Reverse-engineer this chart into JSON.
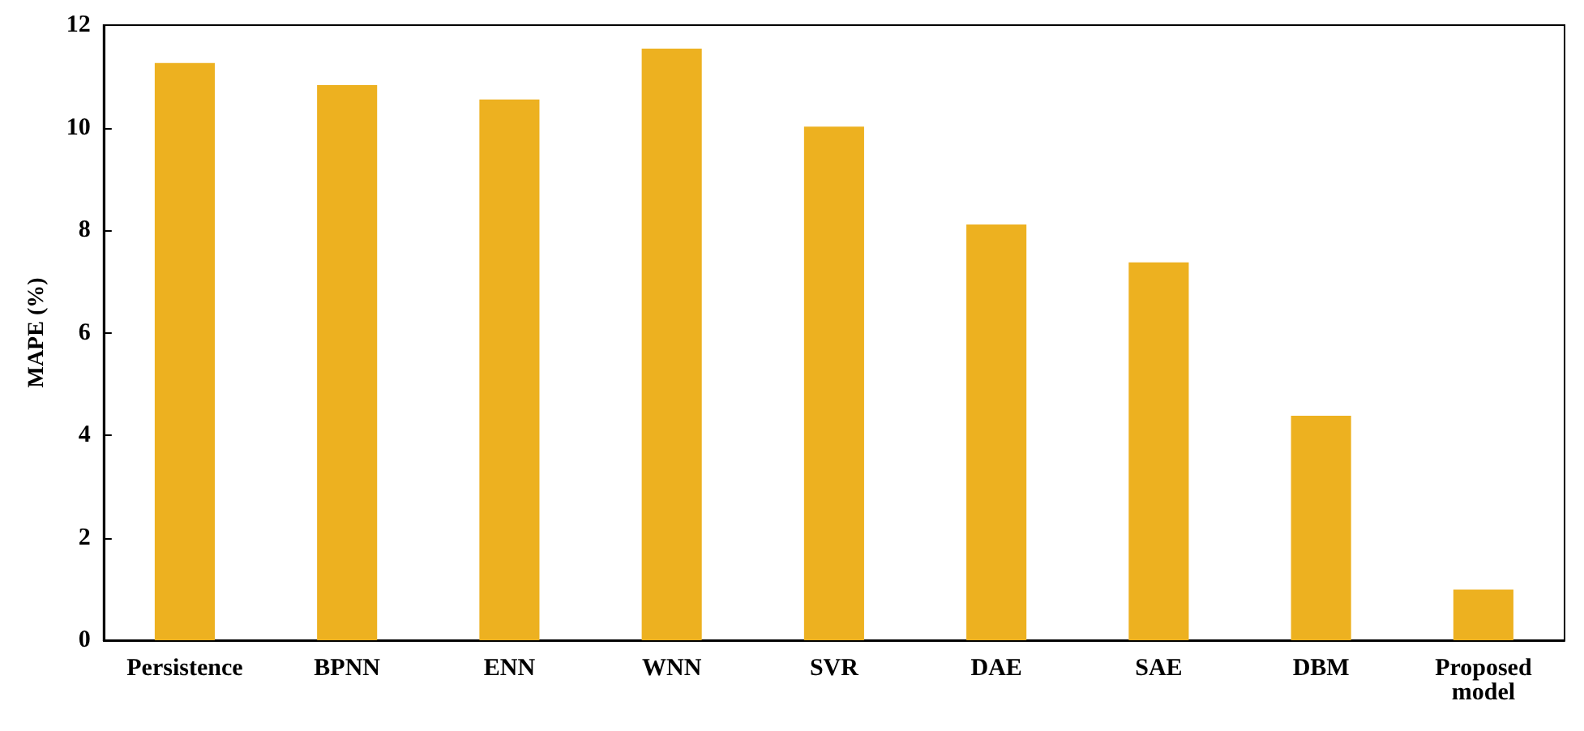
{
  "chart_data": {
    "type": "bar",
    "ylabel": "MAPE (%)",
    "categories": [
      "Persistence",
      "BPNN",
      "ENN",
      "WNN",
      "SVR",
      "DAE",
      "SAE",
      "DBM",
      "Proposed\nmodel"
    ],
    "values": [
      11.26,
      10.83,
      10.55,
      11.54,
      10.02,
      8.11,
      7.37,
      4.38,
      0.99
    ],
    "color": "#edb120",
    "ylim": [
      0,
      12
    ],
    "yticks": [
      0,
      2,
      4,
      6,
      8,
      10,
      12
    ]
  }
}
